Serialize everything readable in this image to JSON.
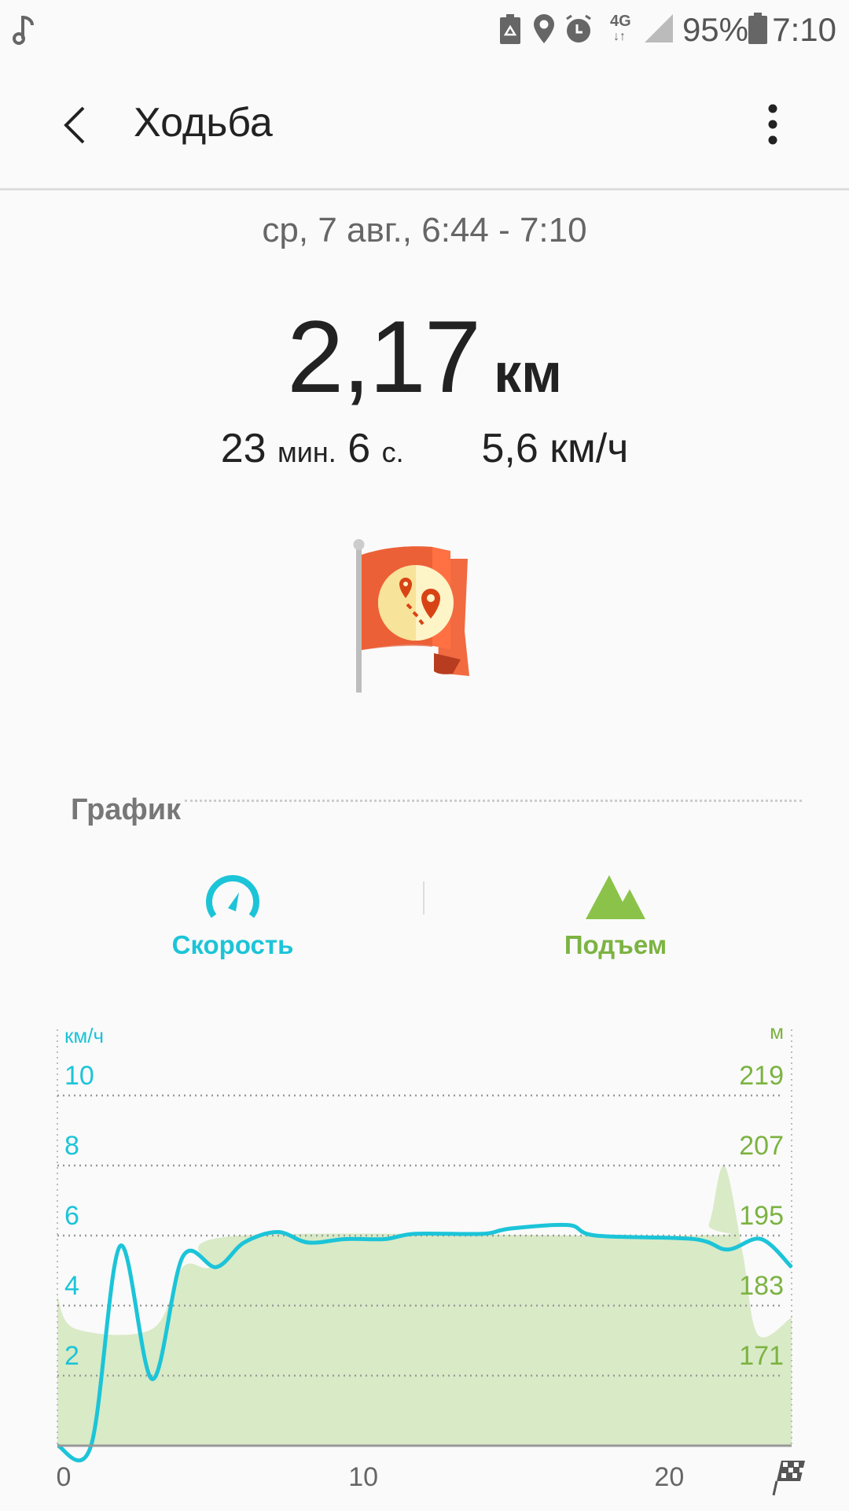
{
  "status_bar": {
    "icons": [
      "music-note-icon",
      "battery-saver-icon",
      "location-icon",
      "alarm-icon",
      "4g-data-icon",
      "signal-icon",
      "battery-icon"
    ],
    "network": "4G",
    "battery": "95%",
    "time": "7:10"
  },
  "app_bar": {
    "title": "Ходьба",
    "back_icon": "back-arrow-icon",
    "more_icon": "more-vert-icon"
  },
  "summary": {
    "date": "ср, 7 авг., 6:44 - 7:10",
    "distance_value": "2,17",
    "distance_unit": "км",
    "duration_min": "23",
    "duration_min_unit": "мин.",
    "duration_sec": "6",
    "duration_sec_unit": "с.",
    "speed_value": "5,6",
    "speed_unit": "км/ч"
  },
  "graph_section": {
    "title": "График",
    "tabs": [
      {
        "label": "Скорость",
        "icon": "speedometer-icon",
        "color": "#1cc4d8"
      },
      {
        "label": "Подъем",
        "icon": "mountain-icon",
        "color": "#8bc34a"
      }
    ]
  },
  "chart_data": {
    "type": "line",
    "xlim": [
      0,
      24
    ],
    "x_ticks": [
      "0",
      "10",
      "20"
    ],
    "x_end_icon": "finish-flag-icon",
    "grid": true,
    "left_axis": {
      "unit": "км/ч",
      "ticks": [
        "2",
        "4",
        "6",
        "8",
        "10"
      ],
      "range": [
        0,
        10
      ],
      "color": "#1cc4d8"
    },
    "right_axis": {
      "unit": "м",
      "ticks": [
        "171",
        "183",
        "195",
        "207",
        "219"
      ],
      "range": [
        159,
        219
      ],
      "color": "#7cb342"
    },
    "series": [
      {
        "type": "line",
        "axis": "left",
        "color": "#1cc4d8",
        "x": [
          0,
          1.1,
          2.05,
          3.1,
          4.1,
          5.2,
          6.1,
          7.2,
          8.2,
          9.4,
          10.7,
          11.7,
          13.9,
          14.8,
          16.7,
          17.6,
          20.8,
          21.9,
          23.0,
          24.0
        ],
        "y": [
          0,
          0,
          5.7,
          1.9,
          5.4,
          5.1,
          5.8,
          6.1,
          5.8,
          5.9,
          5.9,
          6.05,
          6.05,
          6.2,
          6.3,
          6.0,
          5.9,
          5.6,
          5.9,
          5.1
        ]
      },
      {
        "type": "area",
        "axis": "right",
        "color": "#d9eac6",
        "x": [
          0,
          0.6,
          3.1,
          4.1,
          5.0,
          6.0,
          20.8,
          21.3,
          21.8,
          22.4,
          22.9,
          24.0
        ],
        "y": [
          184.6,
          179,
          179,
          189.6,
          189.6,
          195,
          195,
          197,
          207,
          192,
          178,
          181
        ]
      }
    ]
  }
}
